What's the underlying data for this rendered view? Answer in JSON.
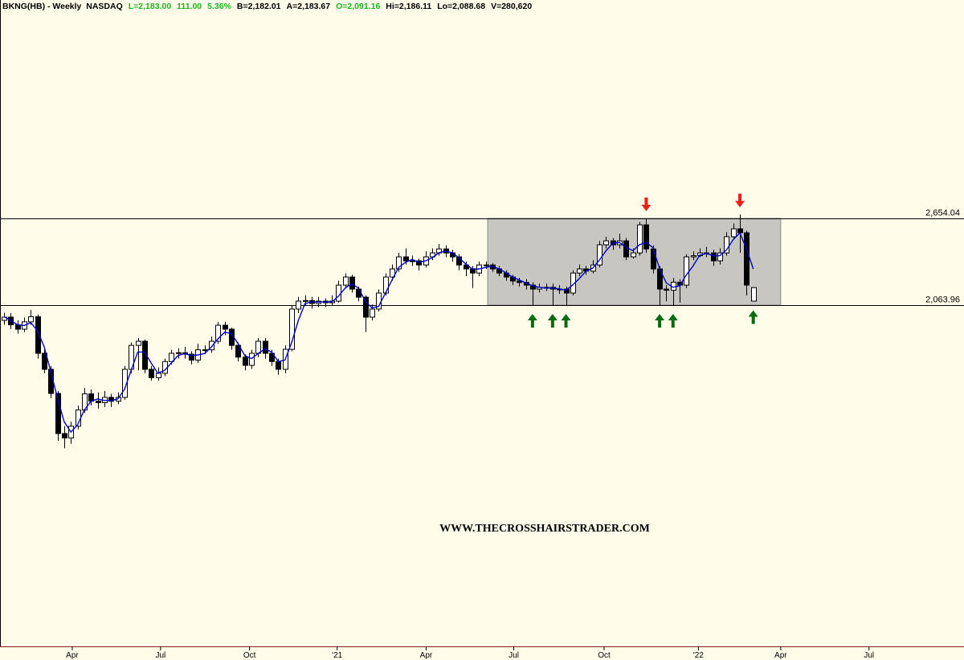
{
  "chart_data": {
    "type": "candlestick",
    "header": {
      "symbol": "BKNG(HB) - Weekly  NASDAQ",
      "last": "L=2,183.00",
      "change": "111.00",
      "change_pct": "5.36%",
      "bid": "B=2,182.01",
      "ask": "A=2,183.67",
      "open": "O=2,091.16",
      "high": "Hi=2,186.11",
      "low": "Lo=2,088.68",
      "volume": "V=280,620"
    },
    "annotation": "WWW.THECROSSHAIRSTRADER.COM",
    "categories": [
      null,
      null,
      null,
      null,
      null,
      null,
      null,
      null,
      null,
      null,
      null,
      null,
      null,
      null,
      null,
      null,
      null,
      null,
      null,
      null,
      null,
      null,
      null,
      null,
      null,
      null,
      null,
      null,
      null,
      null,
      null,
      null,
      null,
      null,
      null,
      null,
      null,
      null,
      null,
      null,
      null,
      null,
      null,
      null,
      null,
      null,
      null,
      null,
      null,
      null,
      null,
      null,
      null,
      null,
      null,
      null,
      null,
      null,
      null,
      null,
      null,
      null,
      null,
      null,
      null,
      null,
      null,
      null,
      null,
      null,
      null,
      null,
      null,
      null,
      null,
      null,
      null,
      null,
      null,
      null,
      null,
      null,
      null,
      null,
      null,
      null,
      null,
      null,
      null,
      null,
      null,
      null,
      null,
      null,
      null,
      null,
      null,
      null,
      null,
      null,
      null,
      null,
      null,
      null,
      null,
      null,
      null,
      null,
      null,
      null,
      null,
      null,
      null
    ],
    "open": [
      1960,
      1982,
      1930,
      1900,
      1950,
      1985,
      1736,
      1627,
      1463,
      1190,
      1160,
      1240,
      1350,
      1460,
      1410,
      1400,
      1436,
      1410,
      1436,
      1627,
      1790,
      1818,
      1627,
      1570,
      1600,
      1680,
      1736,
      1740,
      1730,
      1690,
      1760,
      1760,
      1818,
      1927,
      1900,
      1790,
      1710,
      1654,
      1736,
      1818,
      1736,
      1680,
      1627,
      1763,
      2037,
      2091,
      2095,
      2075,
      2091,
      2080,
      2091,
      2200,
      2255,
      2173,
      2118,
      1982,
      2037,
      2146,
      2255,
      2310,
      2392,
      2365,
      2365,
      2337,
      2392,
      2419,
      2446,
      2419,
      2392,
      2337,
      2310,
      2282,
      2337,
      2337,
      2310,
      2282,
      2255,
      2228,
      2218,
      2200,
      2173,
      2185,
      2185,
      2173,
      2173,
      2146,
      2282,
      2310,
      2295,
      2337,
      2474,
      2501,
      2474,
      2501,
      2392,
      2419,
      2610,
      2446,
      2310,
      2173,
      2165,
      2220,
      2200,
      2392,
      2400,
      2419,
      2419,
      2365,
      2419,
      2529,
      2583,
      2556,
      2091.16
    ],
    "high": [
      2012,
      2010,
      1960,
      1980,
      2030,
      2000,
      1760,
      1650,
      1480,
      1240,
      1270,
      1380,
      1500,
      1490,
      1470,
      1480,
      1460,
      1470,
      1650,
      1810,
      1840,
      1830,
      1650,
      1640,
      1700,
      1760,
      1770,
      1780,
      1750,
      1800,
      1790,
      1850,
      1950,
      1950,
      1910,
      1810,
      1730,
      1760,
      1840,
      1840,
      1760,
      1700,
      1790,
      2060,
      2120,
      2130,
      2120,
      2120,
      2110,
      2130,
      2230,
      2280,
      2270,
      2190,
      2130,
      2070,
      2170,
      2280,
      2340,
      2420,
      2450,
      2400,
      2380,
      2430,
      2450,
      2480,
      2470,
      2440,
      2410,
      2360,
      2330,
      2360,
      2360,
      2350,
      2330,
      2300,
      2270,
      2250,
      2240,
      2220,
      2210,
      2210,
      2210,
      2200,
      2190,
      2300,
      2340,
      2330,
      2370,
      2500,
      2530,
      2520,
      2550,
      2520,
      2450,
      2630,
      2654,
      2470,
      2330,
      2200,
      2250,
      2240,
      2410,
      2430,
      2450,
      2460,
      2440,
      2450,
      2560,
      2620,
      2680,
      2570,
      2186.11
    ],
    "low": [
      1930,
      1900,
      1870,
      1880,
      1930,
      1700,
      1600,
      1430,
      1140,
      1090,
      1120,
      1220,
      1330,
      1380,
      1360,
      1370,
      1370,
      1390,
      1420,
      1600,
      1620,
      1600,
      1550,
      1550,
      1580,
      1660,
      1700,
      1700,
      1660,
      1670,
      1730,
      1740,
      1800,
      1860,
      1760,
      1680,
      1620,
      1630,
      1710,
      1700,
      1650,
      1590,
      1600,
      1750,
      2010,
      2060,
      2040,
      2050,
      2050,
      2060,
      2080,
      2180,
      2150,
      2090,
      1880,
      1960,
      2020,
      2130,
      2230,
      2290,
      2340,
      2330,
      2300,
      2320,
      2370,
      2400,
      2390,
      2360,
      2300,
      2260,
      2180,
      2260,
      2310,
      2290,
      2260,
      2230,
      2200,
      2190,
      2170,
      2064,
      2150,
      2160,
      2064,
      2140,
      2064,
      2130,
      2260,
      2270,
      2280,
      2320,
      2450,
      2440,
      2450,
      2370,
      2380,
      2400,
      2420,
      2280,
      2064,
      2090,
      2064,
      2080,
      2180,
      2370,
      2390,
      2390,
      2330,
      2340,
      2400,
      2510,
      2420,
      2130,
      2088.68
    ],
    "close": [
      1982,
      1930,
      1900,
      1950,
      1985,
      1736,
      1627,
      1463,
      1190,
      1160,
      1240,
      1350,
      1460,
      1410,
      1400,
      1436,
      1410,
      1436,
      1627,
      1790,
      1818,
      1627,
      1570,
      1600,
      1680,
      1736,
      1740,
      1730,
      1690,
      1760,
      1760,
      1818,
      1927,
      1900,
      1790,
      1710,
      1654,
      1736,
      1818,
      1736,
      1680,
      1627,
      1763,
      2037,
      2091,
      2095,
      2075,
      2091,
      2080,
      2091,
      2200,
      2255,
      2173,
      2118,
      1982,
      2037,
      2146,
      2255,
      2310,
      2392,
      2365,
      2365,
      2337,
      2392,
      2419,
      2446,
      2419,
      2392,
      2337,
      2310,
      2282,
      2337,
      2337,
      2310,
      2282,
      2255,
      2228,
      2218,
      2200,
      2173,
      2185,
      2185,
      2173,
      2173,
      2146,
      2282,
      2310,
      2295,
      2337,
      2474,
      2501,
      2474,
      2501,
      2392,
      2419,
      2610,
      2446,
      2310,
      2173,
      2165,
      2220,
      2200,
      2392,
      2400,
      2419,
      2419,
      2365,
      2419,
      2529,
      2583,
      2556,
      2200,
      2183
    ],
    "up_color": "#ffffff",
    "down_color": "#000000",
    "ma": {
      "color": "#0000cc",
      "values": [
        1985,
        1960,
        1930,
        1925,
        1945,
        1890,
        1780,
        1610,
        1430,
        1270,
        1200,
        1250,
        1350,
        1410,
        1425,
        1415,
        1415,
        1425,
        1490,
        1620,
        1745,
        1745,
        1670,
        1600,
        1620,
        1670,
        1720,
        1735,
        1720,
        1725,
        1735,
        1780,
        1835,
        1880,
        1870,
        1800,
        1720,
        1700,
        1735,
        1765,
        1745,
        1680,
        1690,
        1810,
        1960,
        2075,
        2085,
        2085,
        2085,
        2085,
        2125,
        2180,
        2210,
        2180,
        2090,
        2045,
        2055,
        2145,
        2235,
        2320,
        2355,
        2375,
        2355,
        2365,
        2385,
        2420,
        2430,
        2420,
        2385,
        2345,
        2310,
        2310,
        2320,
        2330,
        2310,
        2285,
        2255,
        2235,
        2215,
        2195,
        2185,
        2180,
        2180,
        2175,
        2165,
        2200,
        2245,
        2295,
        2315,
        2370,
        2435,
        2485,
        2490,
        2455,
        2435,
        2475,
        2490,
        2455,
        2310,
        2215,
        2185,
        2195,
        2270,
        2330,
        2405,
        2415,
        2400,
        2400,
        2440,
        2510,
        2555,
        2445,
        2310
      ]
    },
    "hlines": [
      {
        "value": 2654.04,
        "label": "2,654.04"
      },
      {
        "value": 2063.96,
        "label": "2,063.96"
      }
    ],
    "range_box": {
      "x": [
        72.3,
        116.1
      ],
      "color": "#c8c6c0"
    },
    "signals": {
      "sell": [
        96,
        110
      ],
      "buy": [
        79,
        82,
        84,
        98,
        100,
        112
      ],
      "sell_color": "#e8201a",
      "buy_color": "#0a6b12"
    },
    "xlim": [
      -0.6,
      143.5
    ],
    "ylim": [
      -258,
      4140
    ],
    "xticks": [
      {
        "value": 10.2,
        "label": "Apr"
      },
      {
        "value": 23.4,
        "label": "Jul"
      },
      {
        "value": 36.7,
        "label": "Oct"
      },
      {
        "value": 49.8,
        "label": "'21"
      },
      {
        "value": 63.1,
        "label": "Apr"
      },
      {
        "value": 76.2,
        "label": "Jul"
      },
      {
        "value": 89.7,
        "label": "Oct"
      },
      {
        "value": 103.8,
        "label": "'22"
      },
      {
        "value": 116.1,
        "label": "Apr"
      },
      {
        "value": 129.3,
        "label": "Jul"
      }
    ]
  }
}
